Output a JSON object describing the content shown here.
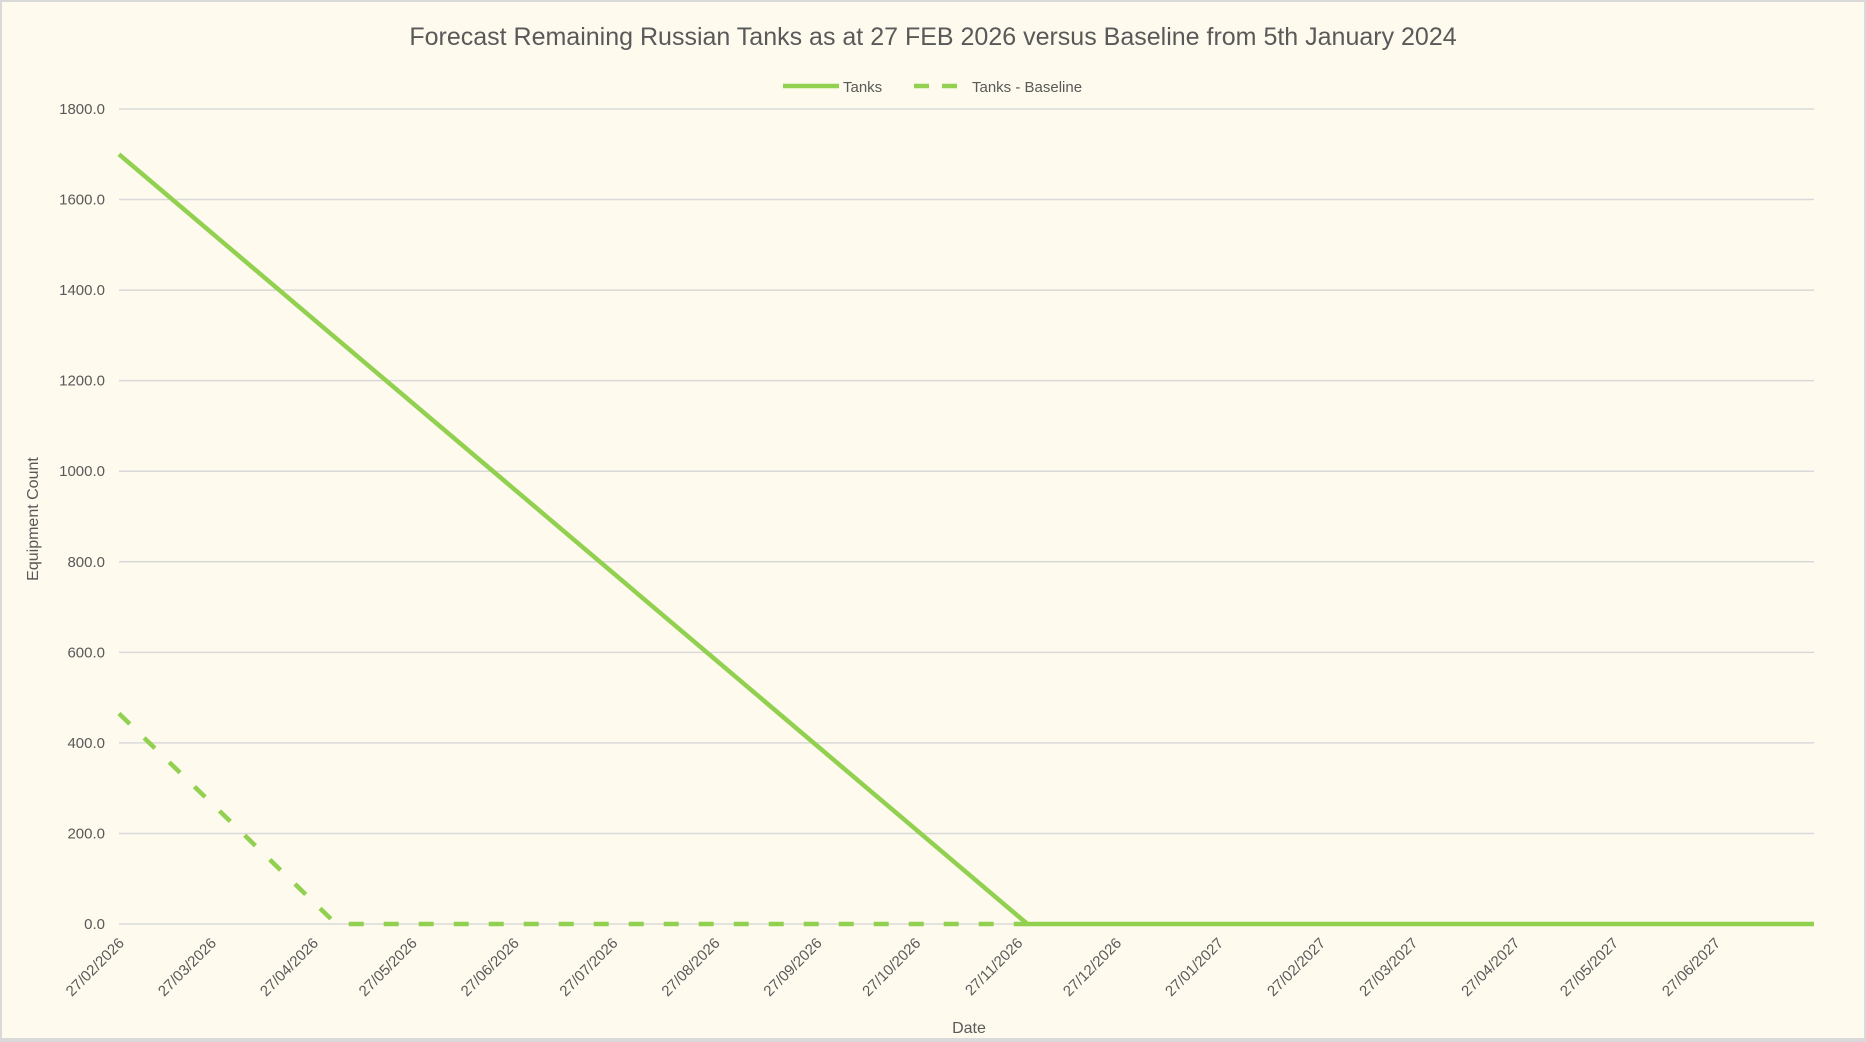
{
  "chart_data": {
    "type": "line",
    "title": "Forecast Remaining Russian Tanks as at 27 FEB 2026 versus Baseline from 5th January 2024",
    "xlabel": "Date",
    "ylabel": "Equipment Count",
    "xlim": [
      "2026-02-27",
      "2027-07-27"
    ],
    "ylim": [
      0,
      1800
    ],
    "yticks": [
      "0.0",
      "200.0",
      "400.0",
      "600.0",
      "800.0",
      "1000.0",
      "1200.0",
      "1400.0",
      "1600.0",
      "1800.0"
    ],
    "xticks": [
      "27/02/2026",
      "27/03/2026",
      "27/04/2026",
      "27/05/2026",
      "27/06/2026",
      "27/07/2026",
      "27/08/2026",
      "27/09/2026",
      "27/10/2026",
      "27/11/2026",
      "27/12/2026",
      "27/01/2027",
      "27/02/2027",
      "27/03/2027",
      "27/04/2027",
      "27/05/2027",
      "27/06/2027"
    ],
    "grid": true,
    "legend_position": "top",
    "series": [
      {
        "name": "Tanks",
        "color": "#92d050",
        "style": "solid",
        "points": [
          [
            "2026-02-27",
            1700
          ],
          [
            "2026-11-30",
            0
          ],
          [
            "2027-07-27",
            0
          ]
        ]
      },
      {
        "name": "Tanks - Baseline",
        "color": "#92d050",
        "style": "dashed",
        "points": [
          [
            "2026-02-27",
            465
          ],
          [
            "2026-05-04",
            0
          ],
          [
            "2026-11-30",
            0
          ]
        ]
      }
    ]
  }
}
